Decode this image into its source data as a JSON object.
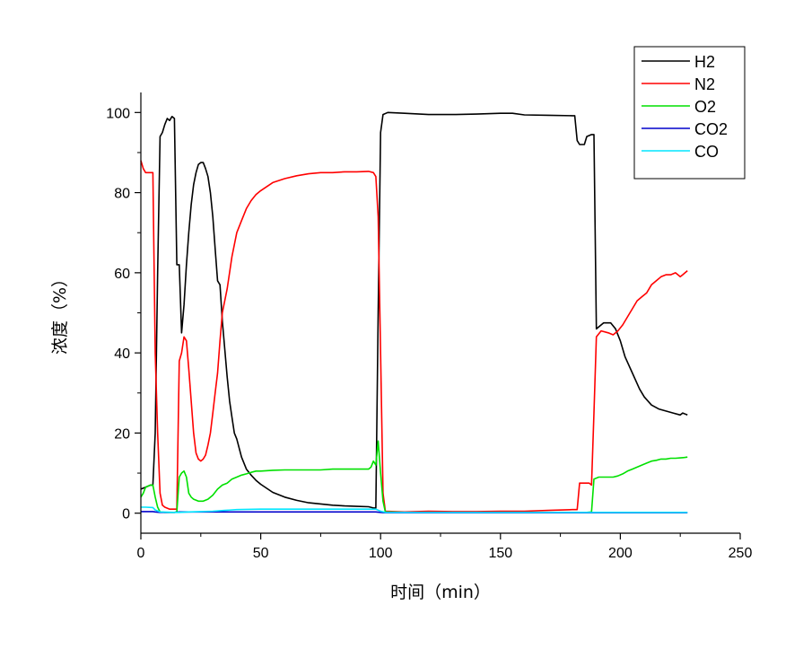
{
  "chart_data": {
    "type": "line",
    "title": "",
    "xlabel": "时间（min）",
    "ylabel": "浓度（%）",
    "xlim": [
      0,
      250
    ],
    "ylim": [
      -5,
      105
    ],
    "xticks": [
      0,
      50,
      100,
      150,
      200,
      250
    ],
    "yticks": [
      0,
      20,
      40,
      60,
      80,
      100
    ],
    "xtick_labels": [
      "0",
      "50",
      "100",
      "150",
      "200",
      "250"
    ],
    "ytick_labels": [
      "0",
      "20",
      "40",
      "60",
      "80",
      "100"
    ],
    "legend_position": "top-right",
    "grid": false,
    "series": [
      {
        "name": "H2",
        "color": "#000000",
        "points": [
          [
            0,
            6
          ],
          [
            2,
            6.5
          ],
          [
            4,
            7
          ],
          [
            5,
            7
          ],
          [
            6,
            20
          ],
          [
            7,
            60
          ],
          [
            8,
            94
          ],
          [
            9,
            95
          ],
          [
            10,
            97
          ],
          [
            11,
            98.5
          ],
          [
            12,
            98
          ],
          [
            13,
            99
          ],
          [
            14,
            98.5
          ],
          [
            15,
            62
          ],
          [
            16,
            62
          ],
          [
            17,
            45
          ],
          [
            18,
            52
          ],
          [
            19,
            62
          ],
          [
            20,
            70
          ],
          [
            21,
            77
          ],
          [
            22,
            82
          ],
          [
            23,
            85
          ],
          [
            24,
            87
          ],
          [
            25,
            87.5
          ],
          [
            26,
            87.5
          ],
          [
            27,
            86
          ],
          [
            28,
            84
          ],
          [
            29,
            80
          ],
          [
            30,
            74
          ],
          [
            31,
            66
          ],
          [
            32,
            58
          ],
          [
            33,
            57
          ],
          [
            34,
            48
          ],
          [
            35,
            41
          ],
          [
            36,
            34
          ],
          [
            37,
            28
          ],
          [
            38,
            24
          ],
          [
            39,
            20
          ],
          [
            40,
            18.5
          ],
          [
            42,
            14
          ],
          [
            44,
            11
          ],
          [
            46,
            9.5
          ],
          [
            48,
            8.2
          ],
          [
            50,
            7.2
          ],
          [
            55,
            5.2
          ],
          [
            60,
            4
          ],
          [
            65,
            3.2
          ],
          [
            70,
            2.6
          ],
          [
            75,
            2.3
          ],
          [
            80,
            2
          ],
          [
            85,
            1.8
          ],
          [
            90,
            1.7
          ],
          [
            95,
            1.6
          ],
          [
            97,
            1.3
          ],
          [
            98,
            1.3
          ],
          [
            99,
            50
          ],
          [
            100,
            95
          ],
          [
            101,
            99.5
          ],
          [
            103,
            100
          ],
          [
            110,
            99.8
          ],
          [
            120,
            99.5
          ],
          [
            130,
            99.5
          ],
          [
            140,
            99.6
          ],
          [
            150,
            99.8
          ],
          [
            155,
            99.8
          ],
          [
            160,
            99.4
          ],
          [
            170,
            99.3
          ],
          [
            180,
            99.2
          ],
          [
            181,
            99.2
          ],
          [
            182,
            93
          ],
          [
            183,
            92
          ],
          [
            185,
            92
          ],
          [
            186,
            94
          ],
          [
            188,
            94.5
          ],
          [
            189,
            94.5
          ],
          [
            190,
            46
          ],
          [
            191,
            46.5
          ],
          [
            193,
            47.5
          ],
          [
            196,
            47.5
          ],
          [
            198,
            46
          ],
          [
            200,
            43
          ],
          [
            202,
            39
          ],
          [
            205,
            35
          ],
          [
            208,
            31
          ],
          [
            210,
            29
          ],
          [
            213,
            27
          ],
          [
            216,
            26
          ],
          [
            219,
            25.5
          ],
          [
            222,
            25
          ],
          [
            225,
            24.5
          ],
          [
            226,
            25
          ],
          [
            228,
            24.5
          ]
        ]
      },
      {
        "name": "N2",
        "color": "#ff0000",
        "points": [
          [
            0,
            88
          ],
          [
            1,
            86
          ],
          [
            2,
            85
          ],
          [
            4,
            85
          ],
          [
            5,
            85
          ],
          [
            6,
            40
          ],
          [
            7,
            20
          ],
          [
            8,
            5
          ],
          [
            9,
            2
          ],
          [
            10,
            1.5
          ],
          [
            12,
            1
          ],
          [
            14,
            1
          ],
          [
            15,
            1
          ],
          [
            16,
            38
          ],
          [
            17,
            40
          ],
          [
            18,
            44
          ],
          [
            19,
            43
          ],
          [
            20,
            36
          ],
          [
            21,
            28
          ],
          [
            22,
            20
          ],
          [
            23,
            15
          ],
          [
            24,
            13.5
          ],
          [
            25,
            13
          ],
          [
            26,
            13.5
          ],
          [
            27,
            14.5
          ],
          [
            28,
            17
          ],
          [
            29,
            20
          ],
          [
            30,
            25
          ],
          [
            31,
            30
          ],
          [
            32,
            35
          ],
          [
            33,
            43
          ],
          [
            34,
            50
          ],
          [
            36,
            56
          ],
          [
            38,
            64
          ],
          [
            40,
            70
          ],
          [
            42,
            73
          ],
          [
            44,
            76
          ],
          [
            46,
            78
          ],
          [
            48,
            79.5
          ],
          [
            50,
            80.5
          ],
          [
            55,
            82.5
          ],
          [
            60,
            83.5
          ],
          [
            65,
            84.2
          ],
          [
            70,
            84.7
          ],
          [
            75,
            85
          ],
          [
            80,
            85
          ],
          [
            85,
            85.2
          ],
          [
            90,
            85.2
          ],
          [
            95,
            85.3
          ],
          [
            97,
            85
          ],
          [
            98,
            84
          ],
          [
            99,
            74
          ],
          [
            100,
            40
          ],
          [
            101,
            5
          ],
          [
            102,
            0.5
          ],
          [
            110,
            0.3
          ],
          [
            120,
            0.5
          ],
          [
            130,
            0.4
          ],
          [
            140,
            0.4
          ],
          [
            150,
            0.5
          ],
          [
            160,
            0.5
          ],
          [
            170,
            0.7
          ],
          [
            180,
            0.9
          ],
          [
            182,
            0.9
          ],
          [
            183,
            7.5
          ],
          [
            185,
            7.5
          ],
          [
            187,
            7.5
          ],
          [
            188,
            7
          ],
          [
            189,
            25
          ],
          [
            190,
            44
          ],
          [
            192,
            45.5
          ],
          [
            195,
            45
          ],
          [
            197,
            44.5
          ],
          [
            199,
            45.5
          ],
          [
            201,
            47
          ],
          [
            203,
            49
          ],
          [
            205,
            51
          ],
          [
            207,
            53
          ],
          [
            209,
            54
          ],
          [
            211,
            55
          ],
          [
            213,
            57
          ],
          [
            215,
            58
          ],
          [
            217,
            59
          ],
          [
            219,
            59.5
          ],
          [
            221,
            59.5
          ],
          [
            223,
            60
          ],
          [
            225,
            59
          ],
          [
            226,
            59.5
          ],
          [
            227,
            60
          ],
          [
            228,
            60.5
          ]
        ]
      },
      {
        "name": "O2",
        "color": "#00e000",
        "points": [
          [
            0,
            4
          ],
          [
            1,
            5
          ],
          [
            2,
            6.5
          ],
          [
            4,
            7
          ],
          [
            5,
            7
          ],
          [
            6,
            4
          ],
          [
            7,
            1.5
          ],
          [
            8,
            0.3
          ],
          [
            10,
            0.2
          ],
          [
            14,
            0.2
          ],
          [
            15,
            0.3
          ],
          [
            16,
            9
          ],
          [
            17,
            10
          ],
          [
            18,
            10.5
          ],
          [
            19,
            9
          ],
          [
            20,
            5
          ],
          [
            21,
            4
          ],
          [
            22,
            3.5
          ],
          [
            24,
            3
          ],
          [
            26,
            3
          ],
          [
            28,
            3.5
          ],
          [
            30,
            4.5
          ],
          [
            32,
            6
          ],
          [
            34,
            7
          ],
          [
            36,
            7.5
          ],
          [
            38,
            8.5
          ],
          [
            40,
            9
          ],
          [
            42,
            9.5
          ],
          [
            44,
            9.8
          ],
          [
            46,
            10.2
          ],
          [
            48,
            10.5
          ],
          [
            50,
            10.5
          ],
          [
            55,
            10.7
          ],
          [
            60,
            10.8
          ],
          [
            65,
            10.8
          ],
          [
            70,
            10.8
          ],
          [
            75,
            10.8
          ],
          [
            80,
            11
          ],
          [
            85,
            11
          ],
          [
            90,
            11
          ],
          [
            95,
            11
          ],
          [
            96,
            11.5
          ],
          [
            97,
            13
          ],
          [
            98,
            12
          ],
          [
            99,
            18
          ],
          [
            100,
            10
          ],
          [
            101,
            3
          ],
          [
            102,
            0.3
          ],
          [
            110,
            0.2
          ],
          [
            130,
            0.2
          ],
          [
            150,
            0.2
          ],
          [
            170,
            0.2
          ],
          [
            180,
            0.2
          ],
          [
            186,
            0.2
          ],
          [
            188,
            0.3
          ],
          [
            189,
            8.5
          ],
          [
            191,
            9
          ],
          [
            193,
            9
          ],
          [
            195,
            9
          ],
          [
            197,
            9
          ],
          [
            199,
            9.3
          ],
          [
            201,
            9.8
          ],
          [
            203,
            10.5
          ],
          [
            205,
            11
          ],
          [
            207,
            11.5
          ],
          [
            209,
            12
          ],
          [
            211,
            12.5
          ],
          [
            213,
            13
          ],
          [
            215,
            13.2
          ],
          [
            217,
            13.5
          ],
          [
            219,
            13.5
          ],
          [
            221,
            13.7
          ],
          [
            223,
            13.7
          ],
          [
            225,
            13.8
          ],
          [
            227,
            13.9
          ],
          [
            228,
            14
          ]
        ]
      },
      {
        "name": "CO2",
        "color": "#0000cc",
        "points": [
          [
            0,
            0.4
          ],
          [
            5,
            0.4
          ],
          [
            6,
            0.3
          ],
          [
            8,
            0.2
          ],
          [
            14,
            0.2
          ],
          [
            16,
            0.3
          ],
          [
            20,
            0.3
          ],
          [
            30,
            0.3
          ],
          [
            50,
            0.3
          ],
          [
            70,
            0.3
          ],
          [
            90,
            0.3
          ],
          [
            98,
            0.3
          ],
          [
            100,
            0.2
          ],
          [
            102,
            0.1
          ],
          [
            150,
            0.1
          ],
          [
            200,
            0.1
          ],
          [
            228,
            0.1
          ]
        ]
      },
      {
        "name": "CO",
        "color": "#00e5ff",
        "points": [
          [
            0,
            1.5
          ],
          [
            2,
            1.5
          ],
          [
            5,
            1.4
          ],
          [
            6,
            0.8
          ],
          [
            8,
            0.3
          ],
          [
            14,
            0.2
          ],
          [
            16,
            0.2
          ],
          [
            20,
            0.3
          ],
          [
            25,
            0.4
          ],
          [
            30,
            0.5
          ],
          [
            35,
            0.7
          ],
          [
            40,
            0.9
          ],
          [
            50,
            1
          ],
          [
            60,
            1
          ],
          [
            70,
            1
          ],
          [
            80,
            1
          ],
          [
            90,
            1
          ],
          [
            98,
            1
          ],
          [
            100,
            0.5
          ],
          [
            102,
            0.2
          ],
          [
            120,
            0.2
          ],
          [
            150,
            0.2
          ],
          [
            180,
            0.2
          ],
          [
            190,
            0.2
          ],
          [
            200,
            0.2
          ],
          [
            228,
            0.2
          ]
        ]
      }
    ]
  }
}
